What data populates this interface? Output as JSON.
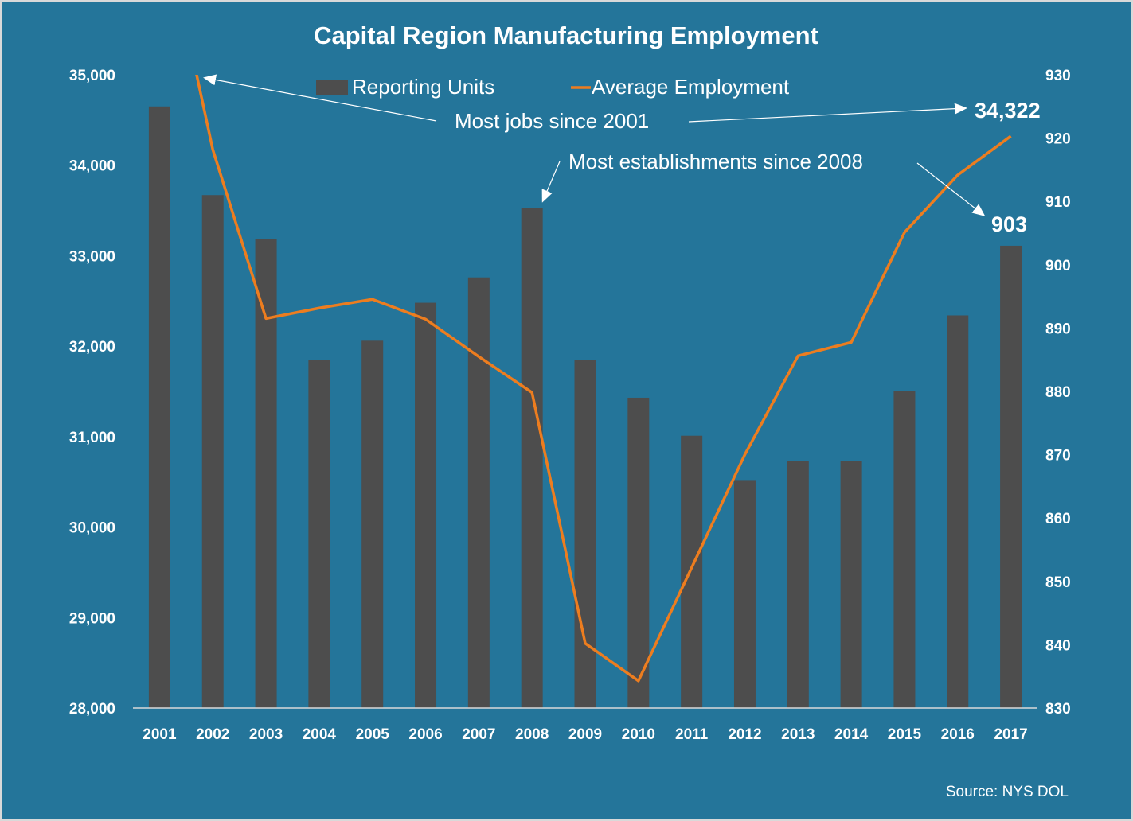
{
  "chart_data": {
    "type": "bar+line",
    "title": "Capital Region Manufacturing Employment",
    "categories": [
      "2001",
      "2002",
      "2003",
      "2004",
      "2005",
      "2006",
      "2007",
      "2008",
      "2009",
      "2010",
      "2011",
      "2012",
      "2013",
      "2014",
      "2015",
      "2016",
      "2017"
    ],
    "series": [
      {
        "name": "Reporting Units",
        "type": "bar",
        "axis": "right",
        "color": "#4d4d4d",
        "values": [
          925,
          911,
          904,
          885,
          888,
          894,
          898,
          909,
          885,
          879,
          873,
          866,
          869,
          869,
          880,
          892,
          903
        ]
      },
      {
        "name": "Average Employment",
        "type": "line",
        "axis": "left",
        "color": "#ed7d1f",
        "values": [
          36900,
          34173,
          32306,
          32421,
          32518,
          32298,
          31884,
          31488,
          28715,
          28301,
          29551,
          30801,
          31893,
          32042,
          33257,
          33891,
          34322
        ]
      }
    ],
    "left_axis": {
      "min": 28000,
      "max": 35000,
      "step": 1000,
      "tick_labels": [
        "28,000",
        "29,000",
        "30,000",
        "31,000",
        "32,000",
        "33,000",
        "34,000",
        "35,000"
      ]
    },
    "right_axis": {
      "min": 830,
      "max": 930,
      "step": 10,
      "tick_labels": [
        "830",
        "840",
        "850",
        "860",
        "870",
        "880",
        "890",
        "900",
        "910",
        "920",
        "930"
      ]
    },
    "legend": {
      "placement": "top-center",
      "entries": [
        "Reporting Units",
        "Average Employment"
      ]
    },
    "grid": false,
    "annotations": {
      "jobs_text": "Most jobs since 2001",
      "jobs_value": "34,322",
      "establishments_text": "Most establishments since 2008",
      "establishments_value": "903"
    },
    "source": "Source: NYS DOL"
  },
  "colors": {
    "background": "#24759a",
    "bar": "#4d4d4d",
    "line": "#ed7d1f",
    "text": "#ffffff",
    "axis": "#d9d9d9"
  }
}
